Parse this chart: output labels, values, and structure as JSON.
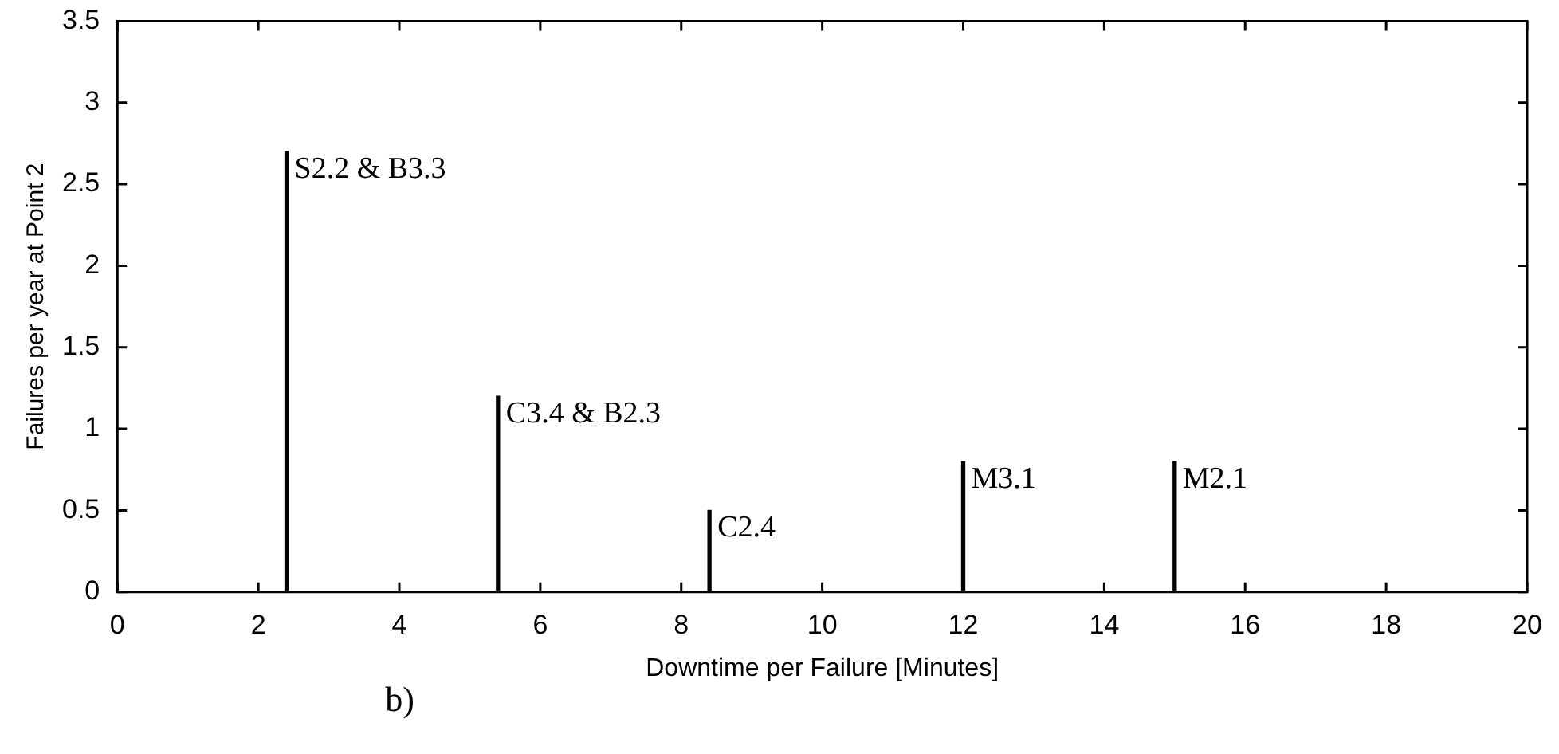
{
  "chart_data": {
    "type": "bar",
    "xlabel": "Downtime per Failure [Minutes]",
    "ylabel": "Failures per year at Point 2",
    "x": [
      2.4,
      5.4,
      8.4,
      12,
      15
    ],
    "values": [
      2.7,
      1.2,
      0.5,
      0.8,
      0.8
    ],
    "color": "#000000",
    "xlim": [
      0,
      20
    ],
    "xticks": [
      0,
      2,
      4,
      6,
      8,
      10,
      12,
      14,
      16,
      18,
      20
    ],
    "ylim": [
      0,
      3.5
    ],
    "yticks": [
      0,
      0.5,
      1,
      1.5,
      2,
      2.5,
      3,
      3.5
    ],
    "grid": false,
    "legend": false,
    "annotations": [
      {
        "text": "S2.2 & B3.3",
        "x": 2.4,
        "y": 2.7
      },
      {
        "text": "C3.4 & B2.3",
        "x": 5.4,
        "y": 1.2
      },
      {
        "text": "C2.4",
        "x": 8.4,
        "y": 0.5
      },
      {
        "text": "M3.1",
        "x": 12,
        "y": 0.8
      },
      {
        "text": "M2.1",
        "x": 15,
        "y": 0.8
      },
      "b)"
    ]
  }
}
